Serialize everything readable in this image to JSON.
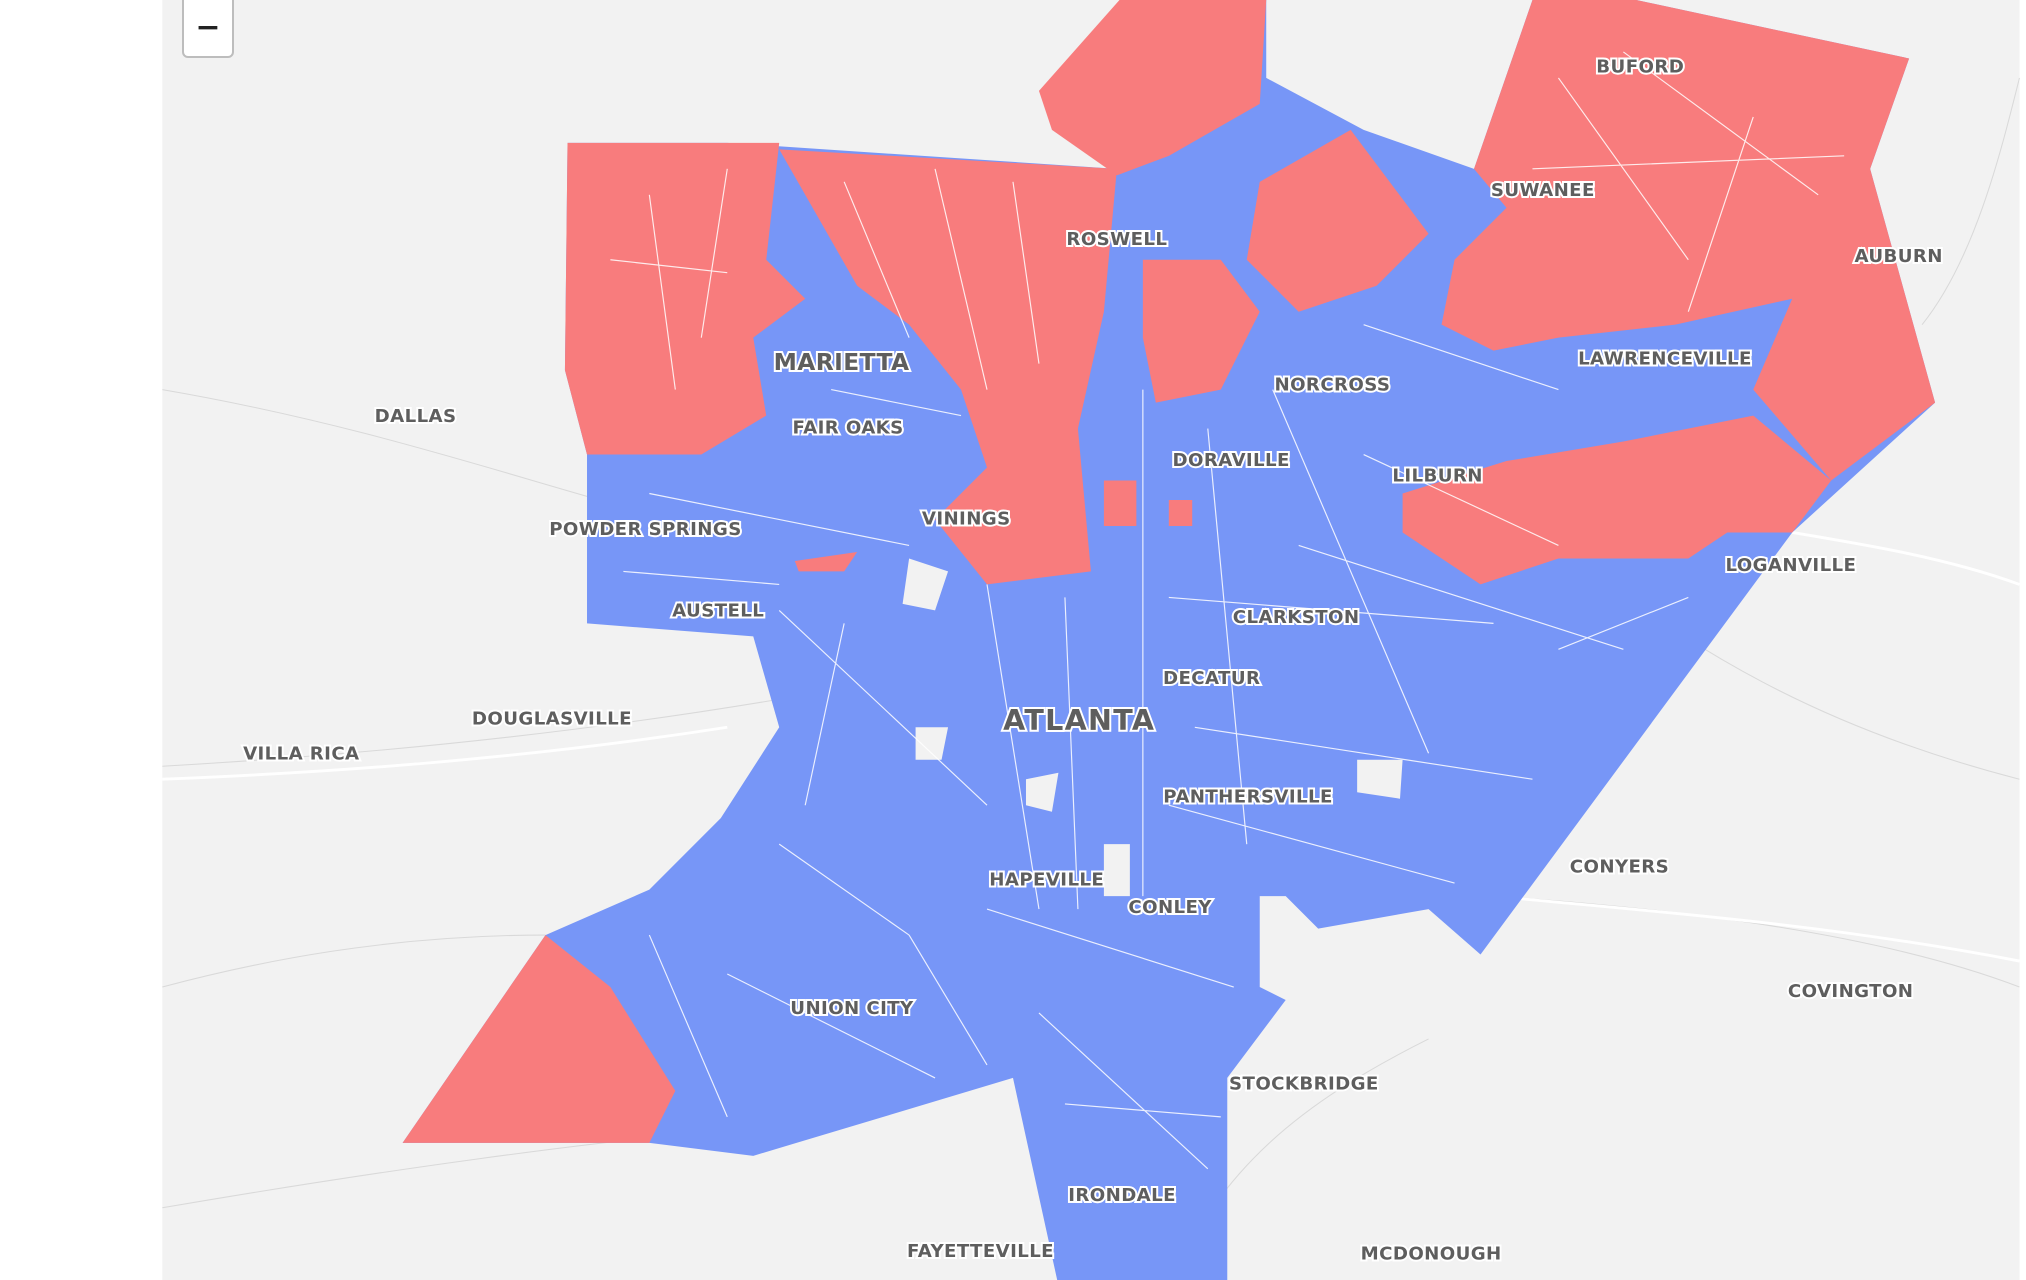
{
  "controls": {
    "zoom_out": "−"
  },
  "places": [
    {
      "name": "BUFORD"
    },
    {
      "name": "SUWANEE"
    },
    {
      "name": "AUBURN"
    },
    {
      "name": "ROSWELL"
    },
    {
      "name": "MARIETTA"
    },
    {
      "name": "LAWRENCEVILLE"
    },
    {
      "name": "NORCROSS"
    },
    {
      "name": "DALLAS"
    },
    {
      "name": "FAIR OAKS"
    },
    {
      "name": "DORAVILLE"
    },
    {
      "name": "LILBURN"
    },
    {
      "name": "POWDER SPRINGS"
    },
    {
      "name": "VININGS"
    },
    {
      "name": "LOGANVILLE"
    },
    {
      "name": "CLARKSTON"
    },
    {
      "name": "AUSTELL"
    },
    {
      "name": "DECATUR"
    },
    {
      "name": "ATLANTA"
    },
    {
      "name": "DOUGLASVILLE"
    },
    {
      "name": "VILLA RICA"
    },
    {
      "name": "PANTHERSVILLE"
    },
    {
      "name": "CONYERS"
    },
    {
      "name": "HAPEVILLE"
    },
    {
      "name": "CONLEY"
    },
    {
      "name": "COVINGTON"
    },
    {
      "name": "UNION CITY"
    },
    {
      "name": "STOCKBRIDGE"
    },
    {
      "name": "IRONDALE"
    },
    {
      "name": "FAYETTEVILLE"
    },
    {
      "name": "MCDONOUGH"
    }
  ]
}
